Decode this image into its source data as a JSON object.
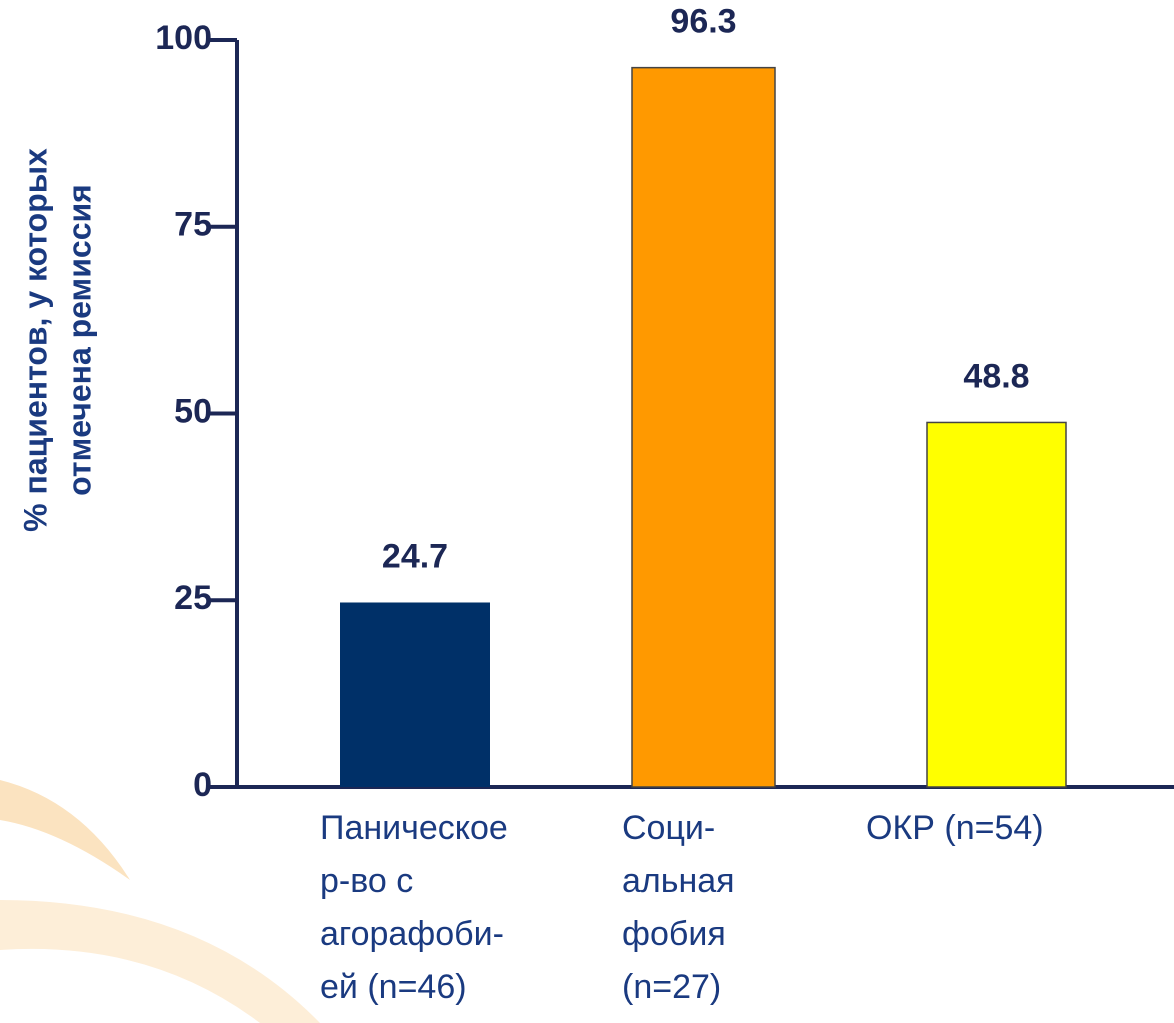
{
  "chart_data": {
    "type": "bar",
    "ylabel": [
      "% пациентов, у которых",
      "отмечена ремиссия"
    ],
    "categories": [
      [
        "Паническое",
        "р-во с",
        "агорафоби-",
        "ей (n=46)"
      ],
      [
        "Соци-",
        "альная",
        "фобия",
        "(n=27)"
      ],
      [
        "ОКР (n=54)"
      ]
    ],
    "values": [
      24.7,
      96.3,
      48.8
    ],
    "colors": [
      "#003068",
      "#ff9900",
      "#ffff00"
    ],
    "ylim": [
      0,
      100
    ],
    "yticks": [
      0,
      25,
      50,
      75,
      100
    ],
    "grid": false
  }
}
